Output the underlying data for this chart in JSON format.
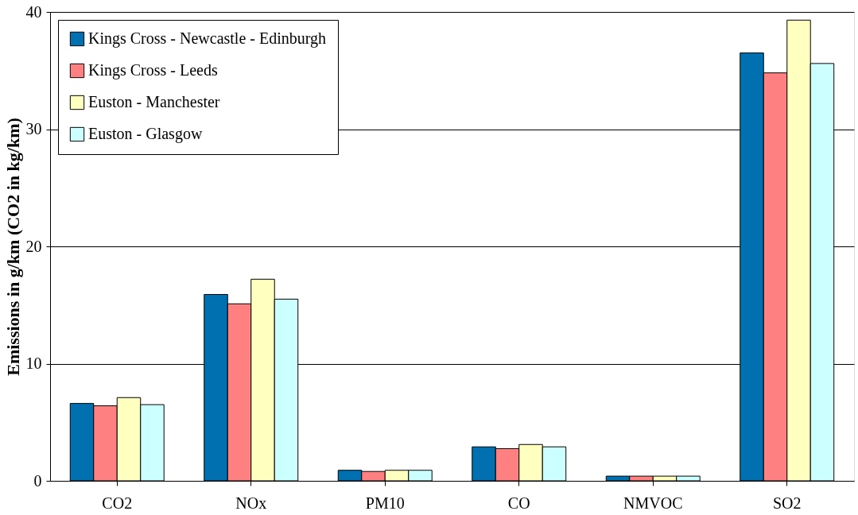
{
  "chart_data": {
    "type": "bar",
    "ylabel": "Emissions in g/km (CO2 in kg/km)",
    "categories": [
      "CO2",
      "NOx",
      "PM10",
      "CO",
      "NMVOC",
      "SO2"
    ],
    "series": [
      {
        "name": "Kings Cross - Newcastle - Edinburgh",
        "color": "#0070b0",
        "values": [
          6.6,
          15.9,
          0.9,
          2.9,
          0.4,
          36.5
        ]
      },
      {
        "name": "Kings Cross - Leeds",
        "color": "#ff8080",
        "values": [
          6.4,
          15.1,
          0.8,
          2.75,
          0.4,
          34.8
        ]
      },
      {
        "name": "Euston - Manchester",
        "color": "#ffffc0",
        "values": [
          7.1,
          17.2,
          0.9,
          3.1,
          0.4,
          39.3
        ]
      },
      {
        "name": "Euston - Glasgow",
        "color": "#ccffff",
        "values": [
          6.5,
          15.5,
          0.9,
          2.9,
          0.4,
          35.6
        ]
      }
    ],
    "ylim": [
      0,
      40
    ],
    "yticks": [
      0,
      10,
      20,
      30,
      40
    ],
    "grid": "y",
    "legend": "top left"
  }
}
